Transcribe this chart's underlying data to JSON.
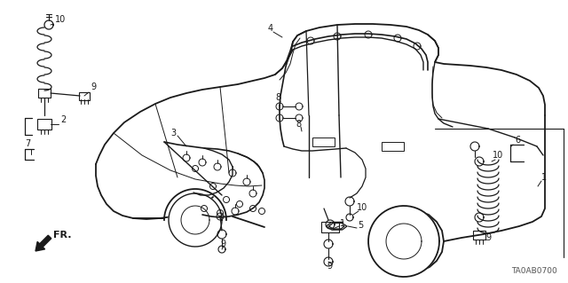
{
  "bg_color": "#ffffff",
  "line_color": "#1a1a1a",
  "part_code": "TA0AB0700",
  "fig_width": 6.4,
  "fig_height": 3.19,
  "dpi": 100
}
